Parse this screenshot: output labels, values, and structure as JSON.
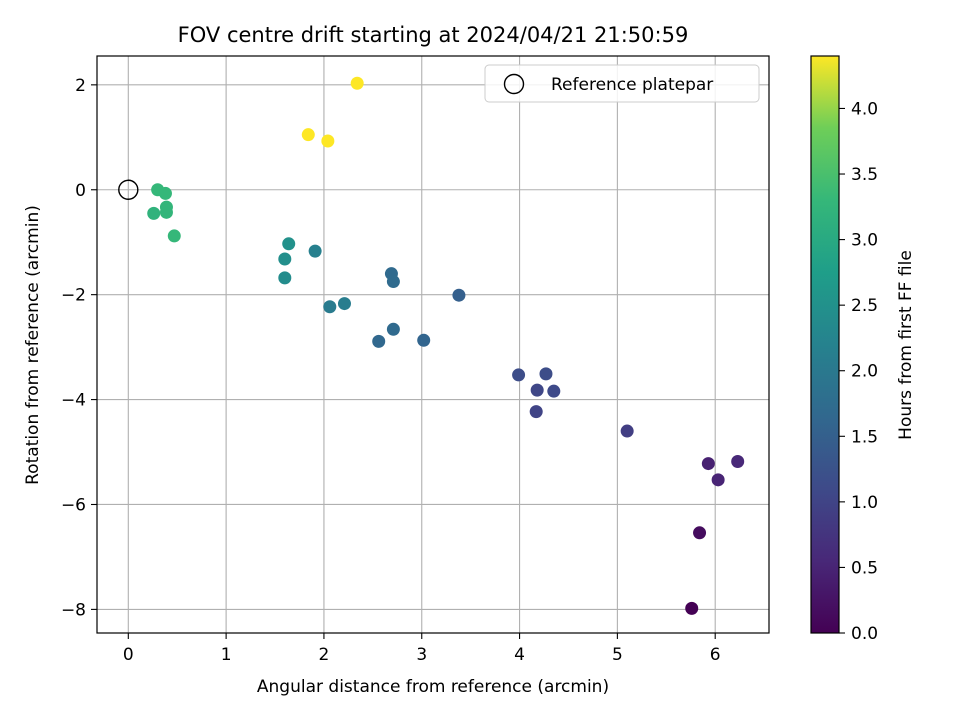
{
  "chart_data": {
    "type": "scatter",
    "title": "FOV centre drift starting at 2024/04/21 21:50:59",
    "xlabel": "Angular distance from reference (arcmin)",
    "ylabel": "Rotation from reference (arcmin)",
    "xlim": [
      -0.32,
      6.55
    ],
    "ylim": [
      -8.45,
      2.55
    ],
    "xticks": [
      0,
      1,
      2,
      3,
      4,
      5,
      6
    ],
    "yticks": [
      -8,
      -6,
      -4,
      -2,
      0,
      2
    ],
    "xtick_labels": [
      "0",
      "1",
      "2",
      "3",
      "4",
      "5",
      "6"
    ],
    "ytick_labels": [
      "−8",
      "−6",
      "−4",
      "−2",
      "0",
      "2"
    ],
    "grid": true,
    "colormap": "viridis",
    "colorbar": {
      "label": "Hours from first FF file",
      "range": [
        0.0,
        4.4
      ],
      "ticks": [
        0.0,
        0.5,
        1.0,
        1.5,
        2.0,
        2.5,
        3.0,
        3.5,
        4.0
      ],
      "tick_labels": [
        "0.0",
        "0.5",
        "1.0",
        "1.5",
        "2.0",
        "2.5",
        "3.0",
        "3.5",
        "4.0"
      ]
    },
    "legend": {
      "placement": "top-right",
      "entries": [
        "Reference platepar"
      ]
    },
    "reference_point": {
      "x": 0,
      "y": 0
    },
    "points": [
      {
        "x": 5.76,
        "y": -7.98,
        "c": 0.0
      },
      {
        "x": 5.84,
        "y": -6.54,
        "c": 0.15
      },
      {
        "x": 5.93,
        "y": -5.22,
        "c": 0.45
      },
      {
        "x": 6.03,
        "y": -5.53,
        "c": 0.5
      },
      {
        "x": 6.23,
        "y": -5.18,
        "c": 0.55
      },
      {
        "x": 5.1,
        "y": -4.6,
        "c": 0.9
      },
      {
        "x": 4.17,
        "y": -4.23,
        "c": 1.0
      },
      {
        "x": 4.18,
        "y": -3.82,
        "c": 1.05
      },
      {
        "x": 4.35,
        "y": -3.84,
        "c": 1.1
      },
      {
        "x": 3.99,
        "y": -3.53,
        "c": 1.15
      },
      {
        "x": 4.27,
        "y": -3.51,
        "c": 1.15
      },
      {
        "x": 3.38,
        "y": -2.01,
        "c": 1.5
      },
      {
        "x": 3.02,
        "y": -2.87,
        "c": 1.6
      },
      {
        "x": 2.56,
        "y": -2.89,
        "c": 1.65
      },
      {
        "x": 2.71,
        "y": -2.66,
        "c": 1.7
      },
      {
        "x": 2.69,
        "y": -1.6,
        "c": 1.7
      },
      {
        "x": 2.71,
        "y": -1.75,
        "c": 1.72
      },
      {
        "x": 2.06,
        "y": -2.23,
        "c": 2.05
      },
      {
        "x": 2.21,
        "y": -2.17,
        "c": 2.1
      },
      {
        "x": 1.91,
        "y": -1.17,
        "c": 2.15
      },
      {
        "x": 1.6,
        "y": -1.68,
        "c": 2.4
      },
      {
        "x": 1.6,
        "y": -1.32,
        "c": 2.45
      },
      {
        "x": 1.64,
        "y": -1.03,
        "c": 2.5
      },
      {
        "x": 0.26,
        "y": -0.45,
        "c": 3.2
      },
      {
        "x": 0.39,
        "y": -0.43,
        "c": 3.25
      },
      {
        "x": 0.39,
        "y": -0.33,
        "c": 3.25
      },
      {
        "x": 0.3,
        "y": 0.0,
        "c": 3.3
      },
      {
        "x": 0.38,
        "y": -0.07,
        "c": 3.3
      },
      {
        "x": 0.47,
        "y": -0.88,
        "c": 3.3
      },
      {
        "x": 1.84,
        "y": 1.05,
        "c": 4.4
      },
      {
        "x": 2.04,
        "y": 0.93,
        "c": 4.4
      },
      {
        "x": 2.34,
        "y": 2.03,
        "c": 4.4
      }
    ]
  }
}
